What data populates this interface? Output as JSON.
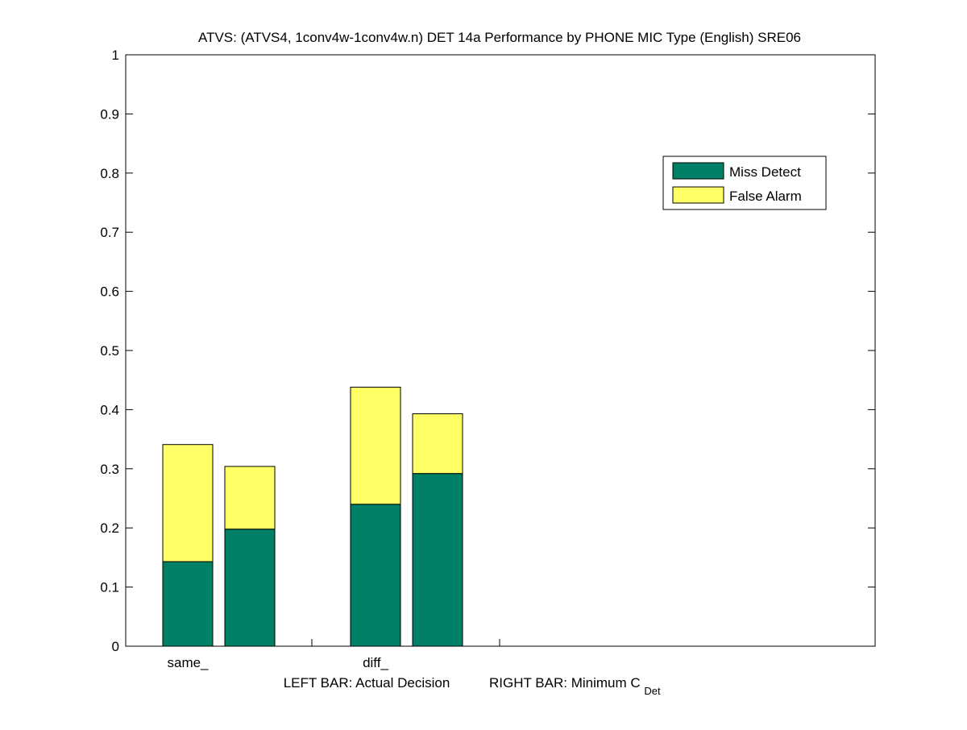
{
  "chart_data": {
    "type": "bar",
    "stacked": true,
    "title": "ATVS: (ATVS4, 1conv4w-1conv4w.n) DET 14a Performance by PHONE MIC Type (English) SRE06",
    "xlabel_left": "LEFT BAR: Actual Decision",
    "xlabel_right_main": "RIGHT BAR: Minimum C",
    "xlabel_right_sub": "Det",
    "categories": [
      "same_",
      "diff_"
    ],
    "bars_per_category": [
      "Actual Decision",
      "Minimum CDet"
    ],
    "series": [
      {
        "name": "Miss Detect",
        "color": "#008066",
        "values": [
          [
            0.143,
            0.198
          ],
          [
            0.24,
            0.292
          ]
        ]
      },
      {
        "name": "False Alarm",
        "color": "#ffff66",
        "values": [
          [
            0.198,
            0.106
          ],
          [
            0.198,
            0.101
          ]
        ]
      }
    ],
    "totals": [
      [
        0.341,
        0.304
      ],
      [
        0.438,
        0.393
      ]
    ],
    "ylim": [
      0,
      1
    ],
    "yticks": [
      "0",
      "0.1",
      "0.2",
      "0.3",
      "0.4",
      "0.5",
      "0.6",
      "0.7",
      "0.8",
      "0.9",
      "1"
    ],
    "grid": false,
    "legend_position": "top-right"
  }
}
